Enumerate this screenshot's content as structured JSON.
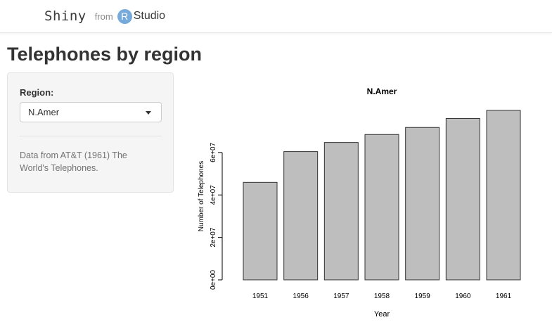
{
  "header": {
    "brand_shiny": "Shiny",
    "brand_from": "from",
    "brand_r": "R",
    "brand_studio": "Studio"
  },
  "page": {
    "title": "Telephones by region"
  },
  "sidebar": {
    "region_label": "Region:",
    "region_selected": "N.Amer",
    "help_text": "Data from AT&T (1961) The World's Telephones."
  },
  "colors": {
    "brand_r_circle": "#75aadb",
    "bar_fill": "#bebebe",
    "bar_stroke": "#333333"
  },
  "chart_data": {
    "type": "bar",
    "title": "N.Amer",
    "xlabel": "Year",
    "ylabel": "Number of Telephones",
    "categories": [
      "1951",
      "1956",
      "1957",
      "1958",
      "1959",
      "1960",
      "1961"
    ],
    "values": [
      45939000,
      60423000,
      64721000,
      68484000,
      71799000,
      76036000,
      79831000
    ],
    "ylim": [
      0,
      79831000
    ],
    "y_ticks": [
      0,
      20000000,
      40000000,
      60000000
    ],
    "y_tick_labels": [
      "0e+00",
      "2e+07",
      "4e+07",
      "6e+07"
    ],
    "grid": false,
    "legend": "none"
  }
}
